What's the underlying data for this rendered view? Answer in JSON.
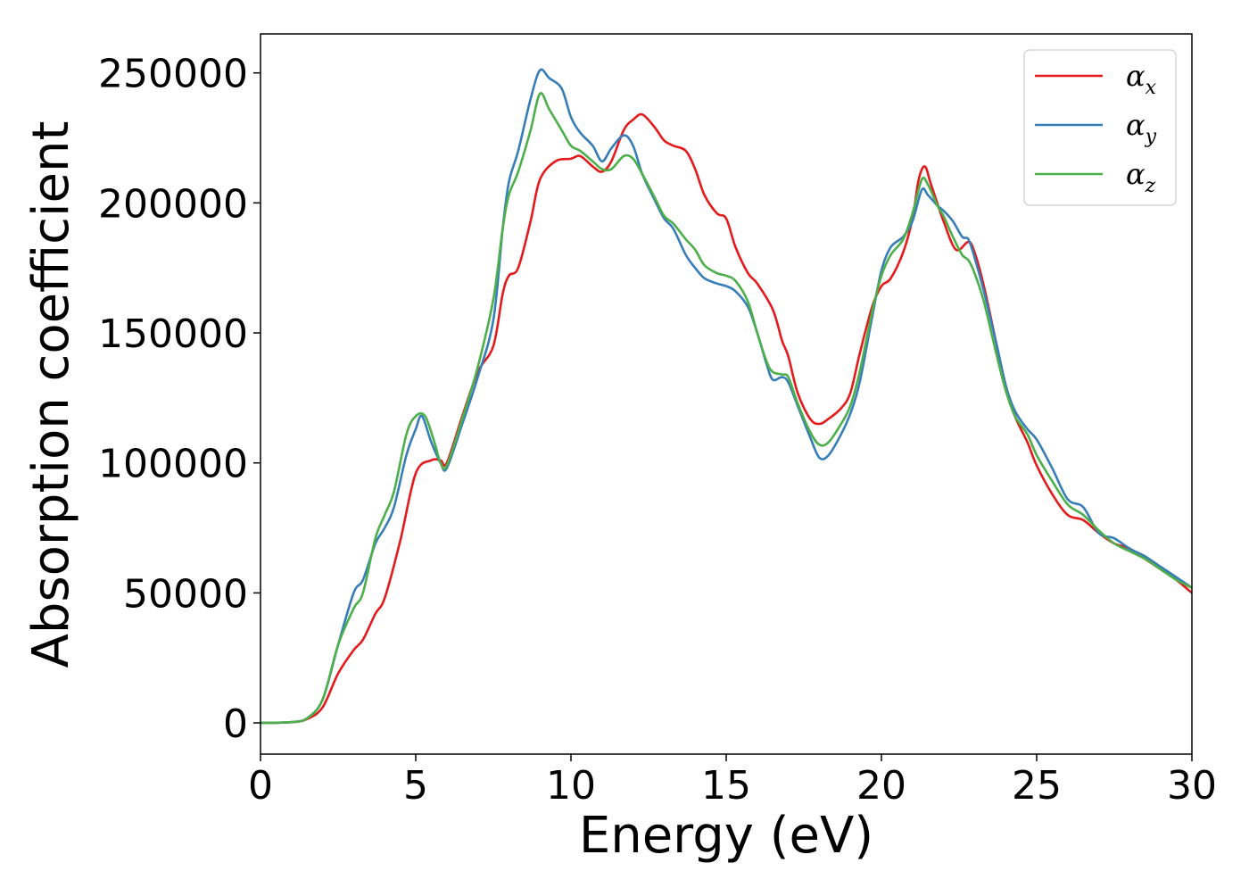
{
  "chart_data": {
    "type": "line",
    "xlabel": "Energy (eV)",
    "ylabel": "Absorption coefficient",
    "xlim": [
      0,
      30
    ],
    "ylim": [
      -12000,
      265000
    ],
    "x_ticks": [
      0,
      5,
      10,
      15,
      20,
      25,
      30
    ],
    "y_ticks": [
      0,
      50000,
      100000,
      150000,
      200000,
      250000
    ],
    "grid": false,
    "legend_position": "top-right",
    "series": [
      {
        "name": "α_x",
        "legend_symbol": "α",
        "legend_subscript": "x",
        "color": "#e41a1c",
        "points": [
          [
            0,
            0
          ],
          [
            1,
            300
          ],
          [
            1.5,
            1500
          ],
          [
            2,
            6000
          ],
          [
            2.5,
            19000
          ],
          [
            3,
            28000
          ],
          [
            3.3,
            32000
          ],
          [
            3.7,
            42000
          ],
          [
            4,
            48000
          ],
          [
            4.5,
            70000
          ],
          [
            5,
            96000
          ],
          [
            5.5,
            101000
          ],
          [
            5.8,
            101000
          ],
          [
            6,
            100000
          ],
          [
            6.5,
            118000
          ],
          [
            7,
            135000
          ],
          [
            7.5,
            145000
          ],
          [
            7.8,
            165000
          ],
          [
            8,
            172000
          ],
          [
            8.3,
            175000
          ],
          [
            8.7,
            193000
          ],
          [
            9,
            209000
          ],
          [
            9.5,
            216000
          ],
          [
            10,
            217000
          ],
          [
            10.3,
            218000
          ],
          [
            10.7,
            214000
          ],
          [
            11,
            212000
          ],
          [
            11.3,
            216000
          ],
          [
            11.7,
            228000
          ],
          [
            12,
            232000
          ],
          [
            12.3,
            234000
          ],
          [
            12.7,
            229000
          ],
          [
            13,
            224000
          ],
          [
            13.3,
            222000
          ],
          [
            13.7,
            220000
          ],
          [
            14,
            213000
          ],
          [
            14.3,
            203000
          ],
          [
            14.7,
            196000
          ],
          [
            15,
            194000
          ],
          [
            15.3,
            183000
          ],
          [
            15.7,
            173000
          ],
          [
            16,
            169000
          ],
          [
            16.5,
            159000
          ],
          [
            16.8,
            147000
          ],
          [
            17,
            141000
          ],
          [
            17.3,
            127000
          ],
          [
            17.7,
            117000
          ],
          [
            18,
            115000
          ],
          [
            18.3,
            117000
          ],
          [
            18.7,
            121000
          ],
          [
            19,
            127000
          ],
          [
            19.3,
            142000
          ],
          [
            19.7,
            160000
          ],
          [
            20,
            168000
          ],
          [
            20.3,
            171000
          ],
          [
            20.7,
            181000
          ],
          [
            21,
            194000
          ],
          [
            21.2,
            209000
          ],
          [
            21.4,
            214000
          ],
          [
            21.6,
            207000
          ],
          [
            22,
            193000
          ],
          [
            22.4,
            182000
          ],
          [
            22.8,
            185000
          ],
          [
            23,
            181000
          ],
          [
            23.3,
            168000
          ],
          [
            23.7,
            146000
          ],
          [
            24,
            130000
          ],
          [
            24.3,
            118000
          ],
          [
            24.7,
            108000
          ],
          [
            25,
            99000
          ],
          [
            25.5,
            88000
          ],
          [
            26,
            80000
          ],
          [
            26.5,
            78000
          ],
          [
            27,
            73000
          ],
          [
            27.5,
            69000
          ],
          [
            28,
            67000
          ],
          [
            28.5,
            63000
          ],
          [
            29,
            59000
          ],
          [
            29.5,
            55000
          ],
          [
            30,
            50000
          ]
        ]
      },
      {
        "name": "α_y",
        "legend_symbol": "α",
        "legend_subscript": "y",
        "color": "#377eb8",
        "points": [
          [
            0,
            0
          ],
          [
            1,
            300
          ],
          [
            1.5,
            1800
          ],
          [
            2,
            9000
          ],
          [
            2.5,
            30000
          ],
          [
            3,
            50000
          ],
          [
            3.3,
            55000
          ],
          [
            3.7,
            69000
          ],
          [
            4,
            75000
          ],
          [
            4.3,
            83000
          ],
          [
            4.7,
            103000
          ],
          [
            5,
            113000
          ],
          [
            5.2,
            118000
          ],
          [
            5.5,
            108000
          ],
          [
            5.8,
            100000
          ],
          [
            6,
            98000
          ],
          [
            6.5,
            115000
          ],
          [
            7,
            133000
          ],
          [
            7.5,
            155000
          ],
          [
            7.8,
            190000
          ],
          [
            8,
            208000
          ],
          [
            8.3,
            220000
          ],
          [
            8.7,
            240000
          ],
          [
            9,
            251000
          ],
          [
            9.3,
            248000
          ],
          [
            9.7,
            244000
          ],
          [
            10,
            233000
          ],
          [
            10.3,
            227000
          ],
          [
            10.7,
            222000
          ],
          [
            11,
            216000
          ],
          [
            11.3,
            221000
          ],
          [
            11.7,
            226000
          ],
          [
            12,
            222000
          ],
          [
            12.3,
            211000
          ],
          [
            12.7,
            201000
          ],
          [
            13,
            194000
          ],
          [
            13.3,
            190000
          ],
          [
            13.7,
            180000
          ],
          [
            14,
            175000
          ],
          [
            14.3,
            171000
          ],
          [
            14.7,
            169000
          ],
          [
            15,
            168000
          ],
          [
            15.3,
            166000
          ],
          [
            15.7,
            160000
          ],
          [
            16,
            150000
          ],
          [
            16.3,
            138000
          ],
          [
            16.5,
            132000
          ],
          [
            16.8,
            133000
          ],
          [
            17,
            131000
          ],
          [
            17.3,
            122000
          ],
          [
            17.7,
            110000
          ],
          [
            18,
            102000
          ],
          [
            18.3,
            103000
          ],
          [
            18.7,
            111000
          ],
          [
            19,
            119000
          ],
          [
            19.3,
            131000
          ],
          [
            19.7,
            156000
          ],
          [
            20,
            174000
          ],
          [
            20.3,
            183000
          ],
          [
            20.7,
            187000
          ],
          [
            21,
            193000
          ],
          [
            21.3,
            205000
          ],
          [
            21.5,
            203000
          ],
          [
            21.8,
            199000
          ],
          [
            22,
            197000
          ],
          [
            22.3,
            193000
          ],
          [
            22.6,
            187000
          ],
          [
            22.8,
            186000
          ],
          [
            23,
            179000
          ],
          [
            23.3,
            166000
          ],
          [
            23.7,
            146000
          ],
          [
            24,
            130000
          ],
          [
            24.3,
            120000
          ],
          [
            24.7,
            113000
          ],
          [
            25,
            109000
          ],
          [
            25.5,
            98000
          ],
          [
            26,
            86000
          ],
          [
            26.5,
            83000
          ],
          [
            27,
            73000
          ],
          [
            27.5,
            71000
          ],
          [
            28,
            67000
          ],
          [
            28.5,
            64000
          ],
          [
            29,
            60000
          ],
          [
            29.5,
            56000
          ],
          [
            30,
            52000
          ]
        ]
      },
      {
        "name": "α_z",
        "legend_symbol": "α",
        "legend_subscript": "z",
        "color": "#4daf4a",
        "points": [
          [
            0,
            0
          ],
          [
            1,
            300
          ],
          [
            1.5,
            1800
          ],
          [
            2,
            9000
          ],
          [
            2.5,
            30000
          ],
          [
            3,
            44000
          ],
          [
            3.3,
            50000
          ],
          [
            3.7,
            71000
          ],
          [
            4,
            80000
          ],
          [
            4.3,
            89000
          ],
          [
            4.7,
            111000
          ],
          [
            5,
            118000
          ],
          [
            5.3,
            118000
          ],
          [
            5.6,
            108000
          ],
          [
            5.8,
            100000
          ],
          [
            6,
            99000
          ],
          [
            6.5,
            117000
          ],
          [
            7,
            137000
          ],
          [
            7.5,
            163000
          ],
          [
            7.8,
            190000
          ],
          [
            8,
            203000
          ],
          [
            8.3,
            212000
          ],
          [
            8.7,
            228000
          ],
          [
            9,
            242000
          ],
          [
            9.3,
            236000
          ],
          [
            9.7,
            228000
          ],
          [
            10,
            222000
          ],
          [
            10.3,
            220000
          ],
          [
            10.7,
            216000
          ],
          [
            11,
            213000
          ],
          [
            11.3,
            213000
          ],
          [
            11.7,
            218000
          ],
          [
            12,
            217000
          ],
          [
            12.3,
            211000
          ],
          [
            12.7,
            202000
          ],
          [
            13,
            195000
          ],
          [
            13.3,
            192000
          ],
          [
            13.7,
            186000
          ],
          [
            14,
            182000
          ],
          [
            14.3,
            176000
          ],
          [
            14.7,
            173000
          ],
          [
            15,
            172000
          ],
          [
            15.3,
            170000
          ],
          [
            15.7,
            162000
          ],
          [
            16,
            150000
          ],
          [
            16.3,
            139000
          ],
          [
            16.5,
            135000
          ],
          [
            16.8,
            134000
          ],
          [
            17,
            133000
          ],
          [
            17.3,
            123000
          ],
          [
            17.7,
            112000
          ],
          [
            18,
            107000
          ],
          [
            18.3,
            108000
          ],
          [
            18.7,
            115000
          ],
          [
            19,
            122000
          ],
          [
            19.3,
            135000
          ],
          [
            19.7,
            158000
          ],
          [
            20,
            172000
          ],
          [
            20.3,
            180000
          ],
          [
            20.7,
            186000
          ],
          [
            21,
            196000
          ],
          [
            21.3,
            209000
          ],
          [
            21.5,
            207000
          ],
          [
            21.8,
            199000
          ],
          [
            22,
            195000
          ],
          [
            22.3,
            187000
          ],
          [
            22.6,
            180000
          ],
          [
            22.8,
            178000
          ],
          [
            23,
            173000
          ],
          [
            23.3,
            162000
          ],
          [
            23.7,
            142000
          ],
          [
            24,
            128000
          ],
          [
            24.3,
            118000
          ],
          [
            24.7,
            111000
          ],
          [
            25,
            103000
          ],
          [
            25.5,
            93000
          ],
          [
            26,
            84000
          ],
          [
            26.5,
            80000
          ],
          [
            27,
            74000
          ],
          [
            27.5,
            69000
          ],
          [
            28,
            66000
          ],
          [
            28.5,
            63000
          ],
          [
            29,
            59000
          ],
          [
            29.5,
            55000
          ],
          [
            30,
            52000
          ]
        ]
      }
    ]
  }
}
